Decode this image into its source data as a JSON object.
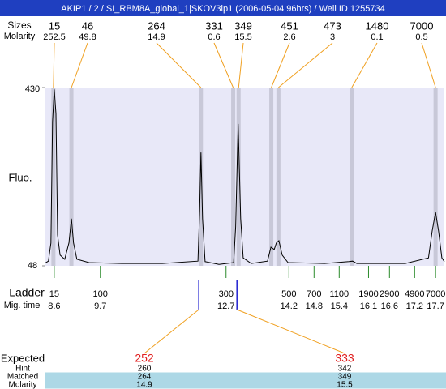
{
  "title": "AKIP1 / 2 / SI_RBM8A_global_1|SKOV3ip1 (2006-05-04 96hrs) / Well ID 1255734",
  "peaks": {
    "size_label": "Sizes",
    "molarity_label": "Molarity",
    "sizes": [
      15,
      46,
      264,
      331,
      349,
      451,
      473,
      1480,
      7000
    ],
    "molarity": [
      252.5,
      49.8,
      14.9,
      0.6,
      15.5,
      2.6,
      3,
      0.1,
      0.5
    ],
    "times": [
      8.58,
      9.01,
      12.1,
      12.87,
      13.0,
      13.78,
      13.95,
      15.7,
      17.7
    ]
  },
  "chart_data": {
    "type": "line",
    "y_label": "Fluo.",
    "color": "#000000",
    "background": "#e8e8f8",
    "xlim": [
      8.37,
      17.91
    ],
    "ylim": [
      48,
      430
    ],
    "yticks": [
      48,
      430
    ],
    "x": [
      8.37,
      8.46,
      8.52,
      8.56,
      8.6,
      8.64,
      8.68,
      8.74,
      8.85,
      8.95,
      9.01,
      9.06,
      9.14,
      9.43,
      10.21,
      11.18,
      12.03,
      12.07,
      12.1,
      12.14,
      12.2,
      12.53,
      12.88,
      12.93,
      12.99,
      13.05,
      13.11,
      13.3,
      13.69,
      13.77,
      13.85,
      13.9,
      13.96,
      14.04,
      14.18,
      15.05,
      15.63,
      15.72,
      15.82,
      16.98,
      17.53,
      17.62,
      17.7,
      17.77,
      17.85,
      17.91
    ],
    "values": [
      53,
      58,
      97,
      357,
      426,
      374,
      114,
      71,
      62,
      97,
      149,
      97,
      62,
      55,
      53,
      53,
      58,
      166,
      291,
      149,
      57,
      51,
      55,
      131,
      352,
      149,
      65,
      53,
      58,
      88,
      83,
      97,
      102,
      71,
      55,
      53,
      57,
      58,
      53,
      53,
      65,
      123,
      163,
      123,
      65,
      57
    ]
  },
  "ladder": {
    "label": "Ladder",
    "time_label": "Mig. time",
    "sizes": [
      15,
      100,
      300,
      500,
      700,
      1100,
      1900,
      2900,
      4900,
      7000
    ],
    "times": [
      8.6,
      9.7,
      12.7,
      14.2,
      14.8,
      15.4,
      16.1,
      16.6,
      17.2,
      17.7
    ]
  },
  "expected": {
    "label": "Expected",
    "values": [
      252,
      333
    ],
    "times": [
      12.05,
      12.96
    ],
    "rows": [
      {
        "label": "Hint",
        "values": [
          260,
          342
        ]
      },
      {
        "label": "Matched",
        "values": [
          264,
          349
        ]
      },
      {
        "label": "Molarity",
        "values": [
          14.9,
          15.5
        ]
      }
    ]
  }
}
